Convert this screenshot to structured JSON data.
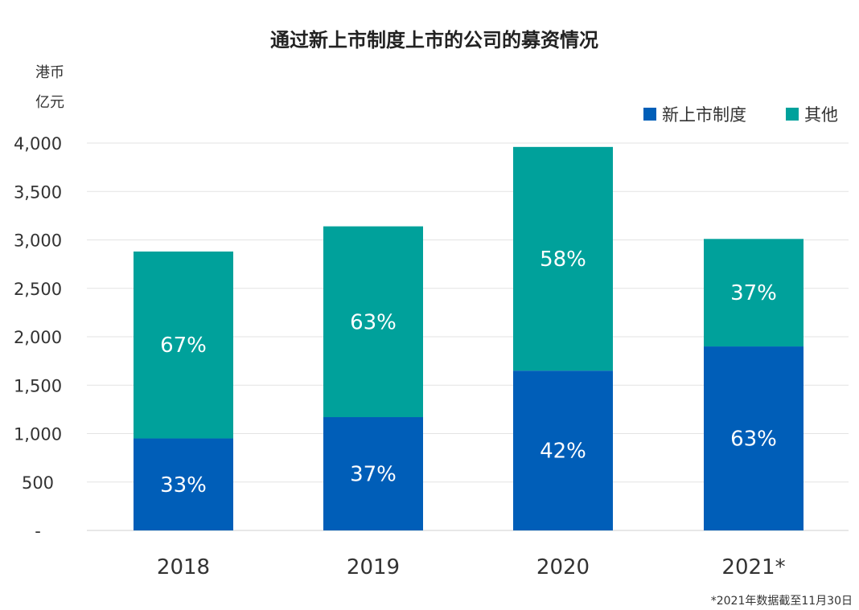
{
  "chart_data": {
    "type": "bar",
    "stacked": true,
    "title": "通过新上市制度上市的公司的募资情况",
    "ylabel_line1": "港币",
    "ylabel_line2": "亿元",
    "categories": [
      "2018",
      "2019",
      "2020",
      "2021*"
    ],
    "y_ticks": [
      {
        "value": 0,
        "label": "-"
      },
      {
        "value": 500,
        "label": "500"
      },
      {
        "value": 1000,
        "label": "1,000"
      },
      {
        "value": 1500,
        "label": "1,500"
      },
      {
        "value": 2000,
        "label": "2,000"
      },
      {
        "value": 2500,
        "label": "2,500"
      },
      {
        "value": 3000,
        "label": "3,000"
      },
      {
        "value": 3500,
        "label": "3,500"
      },
      {
        "value": 4000,
        "label": "4,000"
      }
    ],
    "ylim": [
      0,
      4000
    ],
    "grid": true,
    "legend_position": "top-right",
    "series": [
      {
        "name": "新上市制度",
        "color": "#005eb8",
        "values": [
          950,
          1170,
          1650,
          1900
        ],
        "labels": [
          "33%",
          "37%",
          "42%",
          "63%"
        ]
      },
      {
        "name": "其他",
        "color": "#00a19b",
        "values": [
          1930,
          1970,
          2310,
          1110
        ],
        "labels": [
          "67%",
          "63%",
          "58%",
          "37%"
        ]
      }
    ],
    "footnote": "*2021年数据截至11月30日"
  }
}
